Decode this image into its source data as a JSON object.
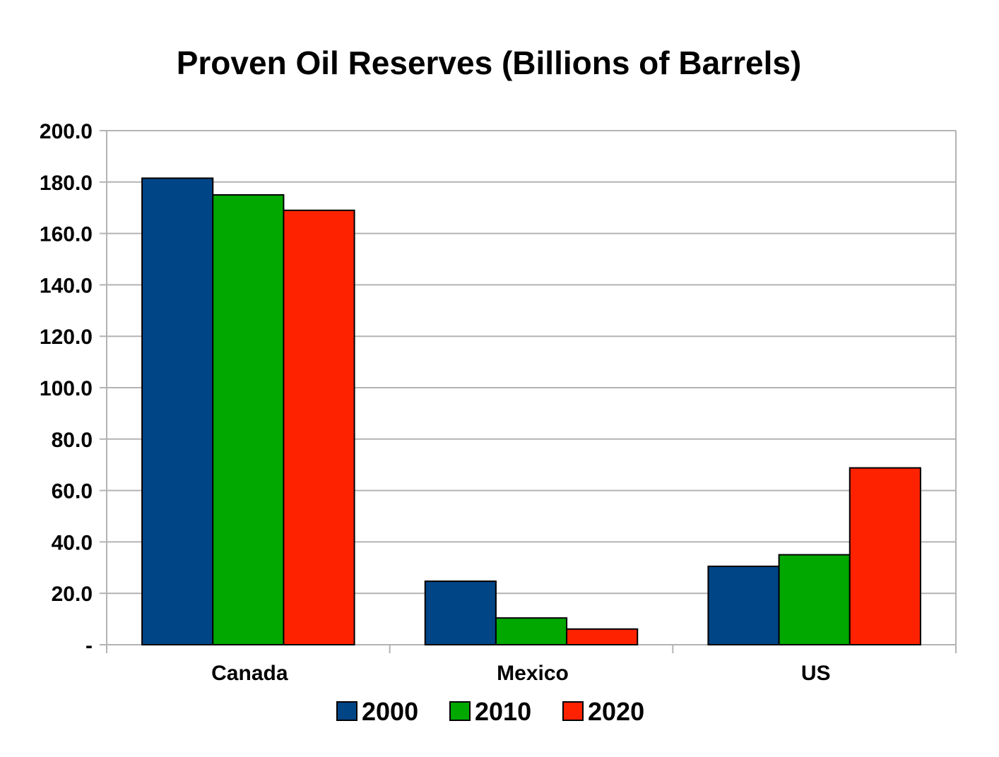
{
  "chart_data": {
    "type": "bar",
    "title": "Proven Oil Reserves (Billions of Barrels)",
    "xlabel": "",
    "ylabel": "",
    "categories": [
      "Canada",
      "Mexico",
      "US"
    ],
    "series": [
      {
        "name": "2000",
        "values": [
          181.5,
          24.7,
          30.5
        ],
        "color": "#004586"
      },
      {
        "name": "2010",
        "values": [
          175.0,
          10.4,
          35.0
        ],
        "color": "#00a800"
      },
      {
        "name": "2020",
        "values": [
          169.0,
          6.1,
          68.8
        ],
        "color": "#ff2200"
      }
    ],
    "ylim": [
      0,
      200
    ],
    "yticks": [
      0,
      20,
      40,
      60,
      80,
      100,
      120,
      140,
      160,
      180,
      200
    ],
    "ytick_labels": [
      "-",
      "20.0",
      "40.0",
      "60.0",
      "80.0",
      "100.0",
      "120.0",
      "140.0",
      "160.0",
      "180.0",
      "200.0"
    ],
    "grid": true,
    "legend_position": "bottom"
  }
}
